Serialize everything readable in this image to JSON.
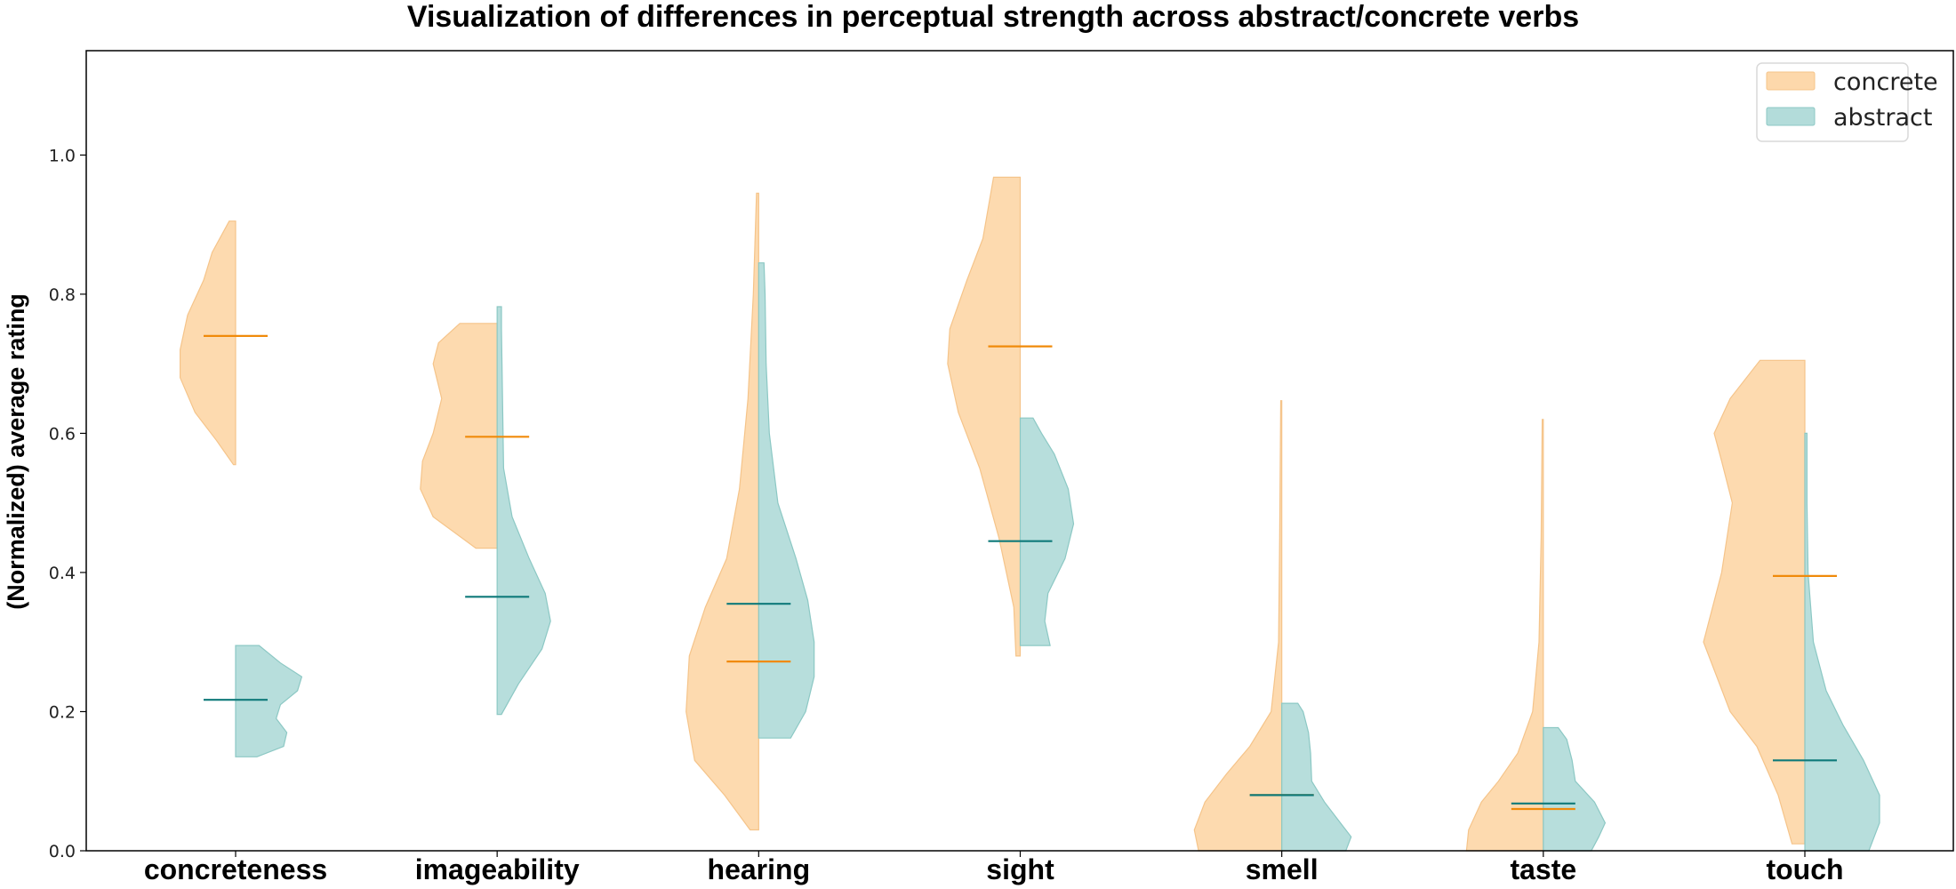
{
  "chart_data": {
    "type": "split-violin",
    "title": "Visualization of differences in perceptual strength across abstract/concrete verbs",
    "ylabel": "(Normalized) average rating",
    "xlabel": "",
    "ylim": [
      0.0,
      1.15
    ],
    "yticks": [
      "0.0",
      "0.2",
      "0.4",
      "0.6",
      "0.8",
      "1.0"
    ],
    "ytick_values": [
      0.0,
      0.2,
      0.4,
      0.6,
      0.8,
      1.0
    ],
    "categories": [
      "concreteness",
      "imageability",
      "hearing",
      "sight",
      "smell",
      "taste",
      "touch"
    ],
    "legend_position": "top-right",
    "grid": false,
    "series": [
      {
        "name": "concrete",
        "side": "left",
        "fill_color": "#FDD8AB",
        "edge_color": "#F5C48A",
        "median_color": "#F08A0A",
        "medians": [
          0.74,
          0.595,
          0.272,
          0.725,
          0.08,
          0.06,
          0.395
        ],
        "shapes": [
          [
            [
              0.555,
              0.02
            ],
            [
              0.59,
              0.18
            ],
            [
              0.63,
              0.38
            ],
            [
              0.68,
              0.52
            ],
            [
              0.72,
              0.52
            ],
            [
              0.77,
              0.45
            ],
            [
              0.82,
              0.3
            ],
            [
              0.86,
              0.22
            ],
            [
              0.905,
              0.06
            ]
          ],
          [
            [
              0.435,
              0.2
            ],
            [
              0.48,
              0.6
            ],
            [
              0.52,
              0.72
            ],
            [
              0.56,
              0.7
            ],
            [
              0.6,
              0.6
            ],
            [
              0.65,
              0.52
            ],
            [
              0.7,
              0.6
            ],
            [
              0.73,
              0.55
            ],
            [
              0.758,
              0.35
            ]
          ],
          [
            [
              0.03,
              0.08
            ],
            [
              0.08,
              0.32
            ],
            [
              0.13,
              0.6
            ],
            [
              0.2,
              0.68
            ],
            [
              0.28,
              0.65
            ],
            [
              0.35,
              0.5
            ],
            [
              0.42,
              0.3
            ],
            [
              0.52,
              0.18
            ],
            [
              0.65,
              0.1
            ],
            [
              0.8,
              0.05
            ],
            [
              0.945,
              0.02
            ]
          ],
          [
            [
              0.28,
              0.04
            ],
            [
              0.35,
              0.06
            ],
            [
              0.45,
              0.2
            ],
            [
              0.55,
              0.38
            ],
            [
              0.63,
              0.58
            ],
            [
              0.7,
              0.68
            ],
            [
              0.75,
              0.66
            ],
            [
              0.82,
              0.5
            ],
            [
              0.88,
              0.35
            ],
            [
              0.968,
              0.25
            ]
          ],
          [
            [
              0.0,
              0.78
            ],
            [
              0.03,
              0.82
            ],
            [
              0.07,
              0.72
            ],
            [
              0.11,
              0.52
            ],
            [
              0.15,
              0.3
            ],
            [
              0.2,
              0.1
            ],
            [
              0.3,
              0.03
            ],
            [
              0.45,
              0.02
            ],
            [
              0.647,
              0.01
            ]
          ],
          [
            [
              0.0,
              0.72
            ],
            [
              0.03,
              0.7
            ],
            [
              0.07,
              0.58
            ],
            [
              0.1,
              0.42
            ],
            [
              0.14,
              0.24
            ],
            [
              0.2,
              0.1
            ],
            [
              0.3,
              0.04
            ],
            [
              0.45,
              0.02
            ],
            [
              0.62,
              0.01
            ]
          ],
          [
            [
              0.01,
              0.12
            ],
            [
              0.08,
              0.25
            ],
            [
              0.15,
              0.45
            ],
            [
              0.2,
              0.7
            ],
            [
              0.3,
              0.95
            ],
            [
              0.4,
              0.78
            ],
            [
              0.5,
              0.68
            ],
            [
              0.56,
              0.78
            ],
            [
              0.6,
              0.85
            ],
            [
              0.65,
              0.7
            ],
            [
              0.705,
              0.42
            ]
          ]
        ]
      },
      {
        "name": "abstract",
        "side": "right",
        "fill_color": "#B3DCDA",
        "edge_color": "#8CC8C4",
        "median_color": "#0F7A7A",
        "medians": [
          0.217,
          0.365,
          0.355,
          0.445,
          0.08,
          0.068,
          0.13
        ],
        "shapes": [
          [
            [
              0.135,
              0.2
            ],
            [
              0.15,
              0.45
            ],
            [
              0.17,
              0.48
            ],
            [
              0.19,
              0.38
            ],
            [
              0.21,
              0.42
            ],
            [
              0.23,
              0.58
            ],
            [
              0.25,
              0.62
            ],
            [
              0.27,
              0.42
            ],
            [
              0.295,
              0.22
            ]
          ],
          [
            [
              0.196,
              0.04
            ],
            [
              0.24,
              0.2
            ],
            [
              0.29,
              0.42
            ],
            [
              0.33,
              0.5
            ],
            [
              0.37,
              0.45
            ],
            [
              0.42,
              0.3
            ],
            [
              0.48,
              0.14
            ],
            [
              0.55,
              0.06
            ],
            [
              0.65,
              0.05
            ],
            [
              0.75,
              0.04
            ],
            [
              0.782,
              0.04
            ]
          ],
          [
            [
              0.162,
              0.3
            ],
            [
              0.2,
              0.44
            ],
            [
              0.25,
              0.52
            ],
            [
              0.3,
              0.52
            ],
            [
              0.36,
              0.46
            ],
            [
              0.42,
              0.35
            ],
            [
              0.5,
              0.18
            ],
            [
              0.6,
              0.1
            ],
            [
              0.7,
              0.07
            ],
            [
              0.8,
              0.06
            ],
            [
              0.845,
              0.05
            ]
          ],
          [
            [
              0.295,
              0.28
            ],
            [
              0.33,
              0.23
            ],
            [
              0.37,
              0.26
            ],
            [
              0.42,
              0.42
            ],
            [
              0.47,
              0.5
            ],
            [
              0.52,
              0.45
            ],
            [
              0.57,
              0.32
            ],
            [
              0.6,
              0.2
            ],
            [
              0.622,
              0.12
            ]
          ],
          [
            [
              0.0,
              0.6
            ],
            [
              0.02,
              0.65
            ],
            [
              0.04,
              0.55
            ],
            [
              0.07,
              0.4
            ],
            [
              0.1,
              0.28
            ],
            [
              0.14,
              0.27
            ],
            [
              0.17,
              0.25
            ],
            [
              0.2,
              0.2
            ],
            [
              0.212,
              0.15
            ]
          ],
          [
            [
              0.0,
              0.45
            ],
            [
              0.02,
              0.52
            ],
            [
              0.04,
              0.58
            ],
            [
              0.07,
              0.48
            ],
            [
              0.1,
              0.3
            ],
            [
              0.13,
              0.27
            ],
            [
              0.16,
              0.22
            ],
            [
              0.177,
              0.14
            ]
          ],
          [
            [
              0.0,
              0.6
            ],
            [
              0.04,
              0.7
            ],
            [
              0.08,
              0.7
            ],
            [
              0.13,
              0.55
            ],
            [
              0.18,
              0.36
            ],
            [
              0.23,
              0.2
            ],
            [
              0.3,
              0.08
            ],
            [
              0.4,
              0.03
            ],
            [
              0.5,
              0.02
            ],
            [
              0.6,
              0.02
            ]
          ]
        ]
      }
    ]
  }
}
